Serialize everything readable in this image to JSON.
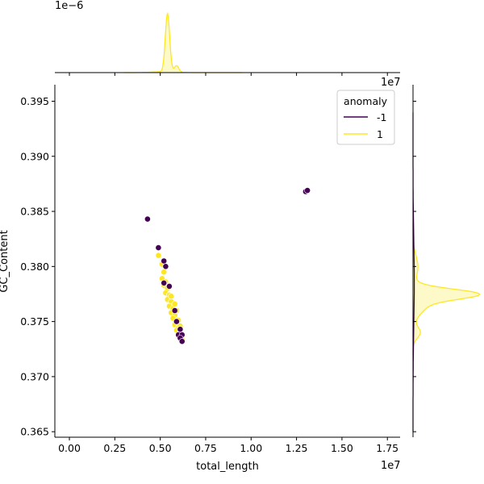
{
  "chart_data": {
    "type": "scatter",
    "xlabel": "total_length",
    "ylabel": "GC_Content",
    "x_offset_text": "1e7",
    "top_marginal_offset_text": "1e−6",
    "right_marginal_offset_text": "1e7",
    "xlim": [
      -0.08,
      1.82
    ],
    "ylim": [
      0.3645,
      0.3965
    ],
    "x_ticks": [
      0.0,
      0.25,
      0.5,
      0.75,
      1.0,
      1.25,
      1.5,
      1.75
    ],
    "x_tick_labels": [
      "0.00",
      "0.25",
      "0.50",
      "0.75",
      "1.00",
      "1.25",
      "1.50",
      "1.75"
    ],
    "y_ticks": [
      0.365,
      0.37,
      0.375,
      0.38,
      0.385,
      0.39,
      0.395
    ],
    "y_tick_labels": [
      "0.365",
      "0.370",
      "0.375",
      "0.380",
      "0.385",
      "0.390",
      "0.395"
    ],
    "legend": {
      "title": "anomaly",
      "placement": "top-right",
      "entries": [
        {
          "label": "-1",
          "color": "#440154"
        },
        {
          "label": "1",
          "color": "#fde725"
        }
      ]
    },
    "series": [
      {
        "name": "1",
        "color": "#fde725",
        "points": [
          [
            0.49,
            0.381
          ],
          [
            0.51,
            0.3802
          ],
          [
            0.52,
            0.3795
          ],
          [
            0.51,
            0.3789
          ],
          [
            0.53,
            0.3786
          ],
          [
            0.52,
            0.3783
          ],
          [
            0.54,
            0.378
          ],
          [
            0.53,
            0.3776
          ],
          [
            0.55,
            0.3774
          ],
          [
            0.54,
            0.377
          ],
          [
            0.56,
            0.3768
          ],
          [
            0.55,
            0.3764
          ],
          [
            0.57,
            0.3762
          ],
          [
            0.56,
            0.3758
          ],
          [
            0.58,
            0.3756
          ],
          [
            0.57,
            0.3753
          ],
          [
            0.59,
            0.375
          ],
          [
            0.58,
            0.3747
          ],
          [
            0.6,
            0.3745
          ],
          [
            0.59,
            0.3742
          ],
          [
            0.61,
            0.374
          ],
          [
            0.6,
            0.3737
          ],
          [
            0.62,
            0.3734
          ],
          [
            0.56,
            0.3773
          ],
          [
            0.58,
            0.3766
          ],
          [
            0.6,
            0.3751
          ],
          [
            0.61,
            0.3746
          ],
          [
            0.59,
            0.376
          ]
        ]
      },
      {
        "name": "-1",
        "color": "#440154",
        "points": [
          [
            0.43,
            0.3843
          ],
          [
            0.49,
            0.3817
          ],
          [
            0.52,
            0.3805
          ],
          [
            0.53,
            0.38
          ],
          [
            0.52,
            0.3785
          ],
          [
            0.55,
            0.3782
          ],
          [
            0.58,
            0.376
          ],
          [
            0.59,
            0.375
          ],
          [
            0.6,
            0.3738
          ],
          [
            0.61,
            0.3743
          ],
          [
            0.62,
            0.3738
          ],
          [
            0.61,
            0.3735
          ],
          [
            0.62,
            0.3732
          ],
          [
            1.3,
            0.3868
          ],
          [
            1.31,
            0.3869
          ]
        ]
      }
    ],
    "marginal_top": {
      "type": "kde",
      "series": [
        {
          "name": "1",
          "color": "#fde725",
          "peak_x": 0.54,
          "secondary_peak_x": 0.59,
          "outlier_x": 1.3
        },
        {
          "name": "-1",
          "color": "#440154",
          "nearly_flat": true
        }
      ]
    },
    "marginal_right": {
      "type": "kde",
      "series": [
        {
          "name": "1",
          "color": "#fde725",
          "peak_y": 0.3775,
          "secondary_peak_y": 0.374
        },
        {
          "name": "-1",
          "color": "#440154",
          "nearly_flat": true
        }
      ]
    }
  }
}
